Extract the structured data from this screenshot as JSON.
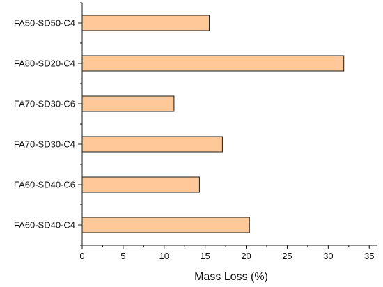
{
  "colors": {
    "bar_fill": "#FFC898",
    "bar_stroke": "#1a1a1a",
    "axis": "#1a1a1a"
  },
  "chart_data": {
    "type": "bar",
    "orientation": "horizontal",
    "categories": [
      "FA60-SD40-C4",
      "FA60-SD40-C6",
      "FA70-SD30-C4",
      "FA70-SD30-C6",
      "FA80-SD20-C4",
      "FA50-SD50-C4"
    ],
    "values": [
      20.4,
      14.3,
      17.1,
      11.2,
      31.9,
      15.5
    ],
    "title": "",
    "xlabel": "Mass Loss (%)",
    "ylabel": "",
    "xlim": [
      0,
      36
    ],
    "xticks": [
      0,
      5,
      10,
      15,
      20,
      25,
      30,
      35
    ],
    "grid": false,
    "legend": "none"
  }
}
